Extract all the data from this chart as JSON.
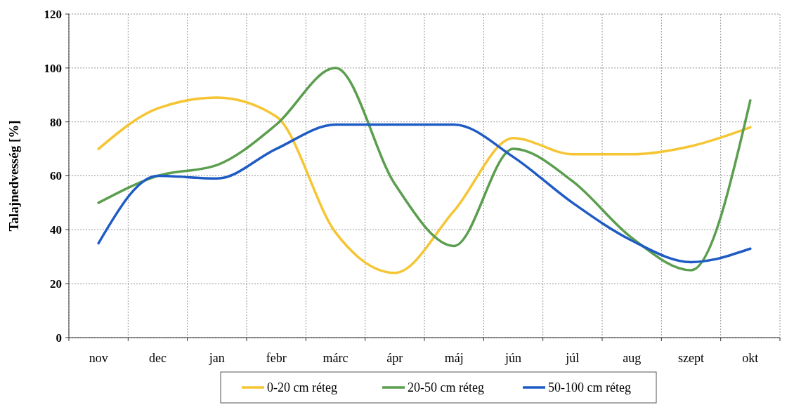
{
  "chart_data": {
    "type": "line",
    "ylabel": "Talajnedvesség [%]",
    "categories": [
      "nov",
      "dec",
      "jan",
      "febr",
      "márc",
      "ápr",
      "máj",
      "jún",
      "júl",
      "aug",
      "szept",
      "okt"
    ],
    "series": [
      {
        "name": "0-20 cm réteg",
        "color": "#f5c533",
        "values": [
          70,
          85,
          89,
          82,
          39,
          24,
          47,
          74,
          68,
          68,
          71,
          78
        ]
      },
      {
        "name": "20-50 cm réteg",
        "color": "#5a9e4e",
        "values": [
          50,
          60,
          64,
          79,
          100,
          57,
          34,
          70,
          58,
          37,
          25,
          88
        ]
      },
      {
        "name": "50-100 cm réteg",
        "color": "#1f5bc4",
        "values": [
          35,
          60,
          59,
          70,
          79,
          79,
          79,
          67,
          50,
          36,
          28,
          33
        ]
      }
    ],
    "ylim": [
      0,
      120
    ],
    "yticks": [
      0,
      20,
      40,
      60,
      80,
      100,
      120
    ],
    "grid": true,
    "legend": "bottom",
    "marker": "none",
    "line_style": "solid"
  }
}
